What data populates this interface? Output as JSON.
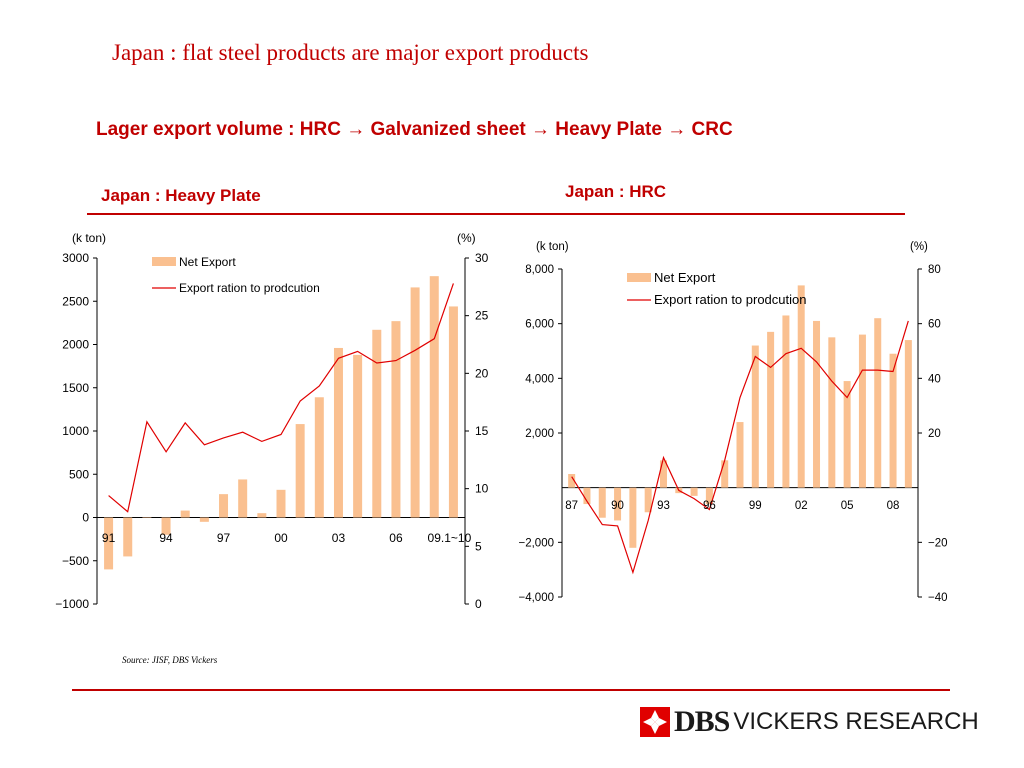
{
  "slide": {
    "title": "Japan : flat steel products are major export products",
    "subtitle": "Lager export  volume : HRC → Galvanized sheet → Heavy Plate → CRC",
    "source": "Source: JISF, DBS Vickers"
  },
  "logo": {
    "wordmark": "DBS",
    "rest": "VICKERS RESEARCH"
  },
  "colors": {
    "accent": "#c00000",
    "bar": "#fac090",
    "line": "#e00000"
  },
  "chart_data": [
    {
      "type": "bar",
      "title": "Japan : Heavy Plate",
      "left_unit": "(k ton)",
      "right_unit": "(%)",
      "legend": [
        "Net Export",
        "Export ration to prodcution"
      ],
      "legend_position": "top",
      "categories": [
        "91",
        "92",
        "93",
        "94",
        "95",
        "96",
        "97",
        "98",
        "99",
        "00",
        "01",
        "02",
        "03",
        "04",
        "05",
        "06",
        "07",
        "08",
        "09.1~10"
      ],
      "x_tick_labels": [
        "91",
        "94",
        "97",
        "00",
        "03",
        "06",
        "09.1~10"
      ],
      "ylim": [
        -1000,
        3000
      ],
      "y_ticks": [
        "3000",
        "2500",
        "2000",
        "1500",
        "1000",
        "500",
        "0",
        "−500",
        "−1000"
      ],
      "y2lim": [
        0,
        30
      ],
      "y2_ticks": [
        "30",
        "25",
        "20",
        "15",
        "10",
        "5",
        "0"
      ],
      "series": [
        {
          "name": "Net Export",
          "type": "bar",
          "values": [
            -600,
            -450,
            0,
            -200,
            80,
            -50,
            270,
            440,
            50,
            320,
            1080,
            1390,
            1960,
            1880,
            2170,
            2270,
            2660,
            2790,
            2440
          ]
        },
        {
          "name": "Export ration to prodcution",
          "type": "line",
          "axis": "right",
          "values": [
            9.4,
            8.0,
            15.8,
            13.2,
            15.7,
            13.8,
            14.4,
            14.9,
            14.1,
            14.7,
            17.6,
            18.9,
            21.3,
            21.9,
            20.9,
            21.1,
            22.0,
            23.0,
            27.8
          ]
        }
      ]
    },
    {
      "type": "bar",
      "title": "Japan : HRC",
      "left_unit": "(k ton)",
      "right_unit": "(%)",
      "legend": [
        "Net Export",
        "Export ration to prodcution"
      ],
      "legend_position": "top",
      "categories": [
        "87",
        "88",
        "89",
        "90",
        "91",
        "92",
        "93",
        "94",
        "95",
        "96",
        "97",
        "98",
        "99",
        "00",
        "01",
        "02",
        "03",
        "04",
        "05",
        "06",
        "07",
        "08",
        "09"
      ],
      "x_tick_labels": [
        "87",
        "90",
        "93",
        "96",
        "99",
        "02",
        "05",
        "08"
      ],
      "ylim": [
        -4000,
        8000
      ],
      "y_ticks": [
        "8,000",
        "6,000",
        "4,000",
        "2,000",
        "−2,000",
        "−4,000"
      ],
      "y2lim": [
        -40,
        80
      ],
      "y2_ticks": [
        "80",
        "60",
        "40",
        "20",
        "−20",
        "−40"
      ],
      "series": [
        {
          "name": "Net Export",
          "type": "bar",
          "values": [
            500,
            -600,
            -1100,
            -1200,
            -2200,
            -900,
            1000,
            -200,
            -300,
            -600,
            1000,
            2400,
            5200,
            5700,
            6300,
            7400,
            6100,
            5500,
            3900,
            5600,
            6200,
            4900,
            5400
          ]
        },
        {
          "name": "Export ration to prodcution",
          "type": "line",
          "axis": "right",
          "values": [
            4,
            -5,
            -13.5,
            -14,
            -31,
            -12,
            11,
            -1,
            -4,
            -8,
            10,
            33,
            48,
            44,
            49,
            51,
            46,
            39,
            33,
            43,
            43,
            42.5,
            61
          ]
        }
      ]
    }
  ]
}
